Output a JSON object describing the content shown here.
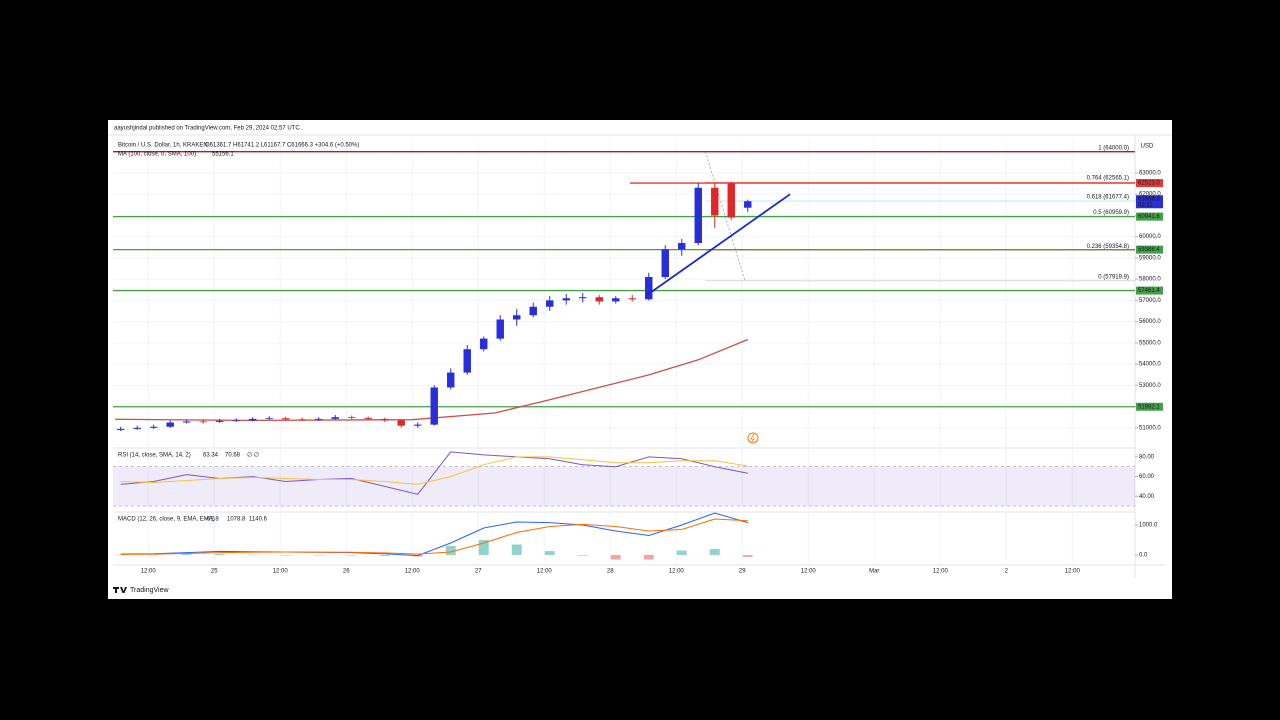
{
  "header": {
    "published": "aayushjindal published on TradingView.com, Feb 29, 2024 02:57 UTC"
  },
  "footer": {
    "brand": "TradingView"
  },
  "chart_data": [
    {
      "type": "candlestick",
      "title": "Bitcoin / U.S. Dollar, 1h, KRAKEN",
      "legend_text": "O61361.7 H61741.2 L61167.7 C61666.3 +304.6 (+0.50%)",
      "currency": "USD",
      "colors": {
        "up": "#2a2ed6",
        "down": "#e0262a"
      },
      "x": [
        7,
        10,
        13,
        16,
        19,
        22,
        25,
        28,
        31,
        34,
        37,
        40,
        43,
        46,
        49,
        52,
        55,
        58,
        61,
        64,
        67,
        70,
        73,
        76,
        79,
        82,
        85,
        88,
        91,
        94,
        97,
        100,
        103,
        106,
        109,
        112,
        115,
        118,
        121
      ],
      "open": [
        50900,
        50950,
        51000,
        51050,
        51250,
        51300,
        51280,
        51330,
        51350,
        51420,
        51450,
        51400,
        51380,
        51420,
        51500,
        51470,
        51420,
        51350,
        51100,
        51150,
        52900,
        53600,
        54700,
        55200,
        56100,
        56300,
        56700,
        57000,
        57100,
        57150,
        56950,
        57100,
        57050,
        58100,
        59400,
        59700,
        62300,
        62500,
        61361.7
      ],
      "high": [
        51050,
        51100,
        51150,
        51350,
        51400,
        51400,
        51420,
        51450,
        51500,
        51550,
        51520,
        51480,
        51500,
        51600,
        51580,
        51530,
        51480,
        51400,
        51250,
        53000,
        53800,
        54900,
        55300,
        56300,
        56600,
        56900,
        57200,
        57300,
        57350,
        57250,
        57200,
        57250,
        58300,
        59600,
        59900,
        62550,
        62500,
        62580,
        61741.2
      ],
      "low": [
        50850,
        50900,
        50950,
        51000,
        51200,
        51200,
        51230,
        51280,
        51300,
        51380,
        51330,
        51320,
        51330,
        51380,
        51400,
        51360,
        51280,
        51000,
        51000,
        51100,
        52800,
        53500,
        54600,
        55100,
        55800,
        56200,
        56500,
        56800,
        56900,
        56800,
        56850,
        56950,
        57000,
        58000,
        59100,
        59600,
        60400,
        60800,
        61167.7
      ],
      "close": [
        50950,
        51000,
        51050,
        51250,
        51300,
        51280,
        51330,
        51350,
        51420,
        51450,
        51400,
        51380,
        51420,
        51500,
        51470,
        51420,
        51350,
        51100,
        51150,
        52900,
        53600,
        54700,
        55200,
        56100,
        56300,
        56700,
        57000,
        57100,
        57150,
        56950,
        57100,
        57050,
        58100,
        59400,
        59700,
        62300,
        61000,
        60900,
        61666.3
      ],
      "ma": {
        "name": "MA (100, close, 0, SMA, 100)",
        "color": "#c9504d",
        "x": [
          6,
          30,
          60,
          75,
          85,
          103,
          112,
          121
        ],
        "values": [
          51400,
          51350,
          51380,
          51700,
          52320,
          53490,
          54200,
          55156.1
        ]
      },
      "levels": [
        {
          "price": 64000,
          "color": "#b71c1c"
        },
        {
          "price": 62523,
          "label": "62523.0",
          "color": "#e53935",
          "start": 99.6
        },
        {
          "price": 60941.6,
          "label": "60941.6",
          "color": "#43a047"
        },
        {
          "price": 59388.4,
          "label": "59388.4",
          "color": "#43a047"
        },
        {
          "price": 57461.4,
          "label": "57461.4",
          "color": "#43a047"
        },
        {
          "price": 51992.1,
          "label": "51992.1",
          "color": "#43a047"
        }
      ],
      "last_price": 61666.3,
      "countdown": "02:11",
      "last_color": "#2a2ed6",
      "fib": {
        "color": "#9e9e9e",
        "x": [
          113.3,
          120.5
        ],
        "prices": [
          64000,
          57919.9
        ],
        "lines": [
          {
            "price": 64000,
            "label": "1 (64000.0)",
            "color": "#5b9bd5"
          },
          {
            "price": 62565.1,
            "label": "0.764 (62565.1)",
            "color": "#c62828"
          },
          {
            "price": 61677.4,
            "label": "0.618 (61677.4)",
            "color": "#26a69a"
          },
          {
            "price": 60959.9,
            "label": "0.5 (60959.9)",
            "color": "#787b86"
          },
          {
            "price": 59354.8,
            "label": "0.236 (59354.8)",
            "color": "#c62828"
          },
          {
            "price": 57919.9,
            "label": "0 (57919.9)",
            "color": "#787b86"
          }
        ]
      },
      "trendline": {
        "color": "#1a2bc4",
        "x": [
          102.4,
          128.7
        ],
        "values": [
          57200,
          62000
        ]
      },
      "ylim": [
        50050,
        64550
      ],
      "yticks": [
        {
          "value": 51000,
          "label": "51000.0"
        },
        {
          "value": 52000,
          "label": "52000.0"
        },
        {
          "value": 53000,
          "label": "53000.0"
        },
        {
          "value": 54000,
          "label": "54000.0"
        },
        {
          "value": 55000,
          "label": "55000.0"
        },
        {
          "value": 56000,
          "label": "56000.0"
        },
        {
          "value": 57000,
          "label": "57000.0"
        },
        {
          "value": 58000,
          "label": "58000.0"
        },
        {
          "value": 59000,
          "label": "59000.0"
        },
        {
          "value": 60000,
          "label": "60000.0"
        },
        {
          "value": 61000,
          "label": "61000.0"
        },
        {
          "value": 62000,
          "label": "62000.0"
        },
        {
          "value": 63000,
          "label": "63000.0"
        }
      ],
      "xlim": [
        5.6,
        191.4
      ],
      "xticks": [
        {
          "value": 12,
          "label": "12:00"
        },
        {
          "value": 24,
          "label": "25"
        },
        {
          "value": 36,
          "label": "12:00"
        },
        {
          "value": 48,
          "label": "26"
        },
        {
          "value": 60,
          "label": "12:00"
        },
        {
          "value": 72,
          "label": "27"
        },
        {
          "value": 84,
          "label": "12:00"
        },
        {
          "value": 96,
          "label": "28"
        },
        {
          "value": 108,
          "label": "12:00"
        },
        {
          "value": 120,
          "label": "29"
        },
        {
          "value": 132,
          "label": "12:00"
        },
        {
          "value": 144,
          "label": "Mar"
        },
        {
          "value": 156,
          "label": "12:00"
        },
        {
          "value": 168,
          "label": "2"
        },
        {
          "value": 180,
          "label": "12:00"
        }
      ],
      "grid": true
    },
    {
      "type": "line",
      "title": "RSI (14, close, SMA, 14, 2)",
      "legend_extra": "∅ ∅",
      "x": [
        7,
        13,
        19,
        25,
        31,
        37,
        43,
        49,
        55,
        61,
        67,
        73,
        79,
        85,
        91,
        97,
        103,
        109,
        115,
        121
      ],
      "series": [
        {
          "color": "#7e57c2",
          "values": [
            52,
            55,
            62,
            58,
            60,
            55,
            57,
            58,
            50,
            42,
            85,
            82,
            80,
            78,
            72,
            70,
            80,
            78,
            70,
            63.34
          ]
        },
        {
          "color": "#f5c342",
          "values": [
            55,
            54,
            56,
            58,
            59,
            58,
            57,
            57,
            55,
            52,
            60,
            72,
            80,
            80,
            77,
            74,
            74,
            76,
            76,
            70.68
          ]
        }
      ],
      "band": [
        30,
        70
      ],
      "band_color": "#7e57c2",
      "ylim": [
        24,
        89
      ],
      "yticks": [
        {
          "value": 40,
          "label": "40.00"
        },
        {
          "value": 60,
          "label": "60.00"
        },
        {
          "value": 80,
          "label": "80.00"
        }
      ]
    },
    {
      "type": "line",
      "title": "MACD (12, 26, close, 9, EMA, EMA)",
      "x": [
        7,
        13,
        19,
        25,
        31,
        37,
        43,
        49,
        55,
        61,
        67,
        73,
        79,
        85,
        91,
        97,
        103,
        109,
        115,
        121
      ],
      "series": [
        {
          "type": "bar",
          "color": "#8fd3cc",
          "down_color": "#f4a3a1",
          "values": [
            10,
            10,
            30,
            40,
            15,
            0,
            -5,
            -10,
            -30,
            -50,
            300,
            500,
            350,
            130,
            -20,
            -150,
            -150,
            150,
            200,
            -61.8
          ]
        },
        {
          "color": "#2962ff",
          "values": [
            30,
            40,
            80,
            120,
            110,
            100,
            90,
            80,
            40,
            -20,
            400,
            900,
            1100,
            1080,
            1000,
            800,
            650,
            1000,
            1400,
            1078.8
          ]
        },
        {
          "color": "#ff6d00",
          "values": [
            20,
            30,
            50,
            80,
            95,
            100,
            95,
            90,
            70,
            30,
            100,
            400,
            750,
            950,
            1020,
            950,
            800,
            850,
            1200,
            1140.6
          ]
        }
      ],
      "ylim": [
        -333,
        1433
      ],
      "yticks": [
        {
          "value": 0,
          "label": "0.0"
        },
        {
          "value": 1000,
          "label": "1000.0"
        }
      ]
    }
  ]
}
